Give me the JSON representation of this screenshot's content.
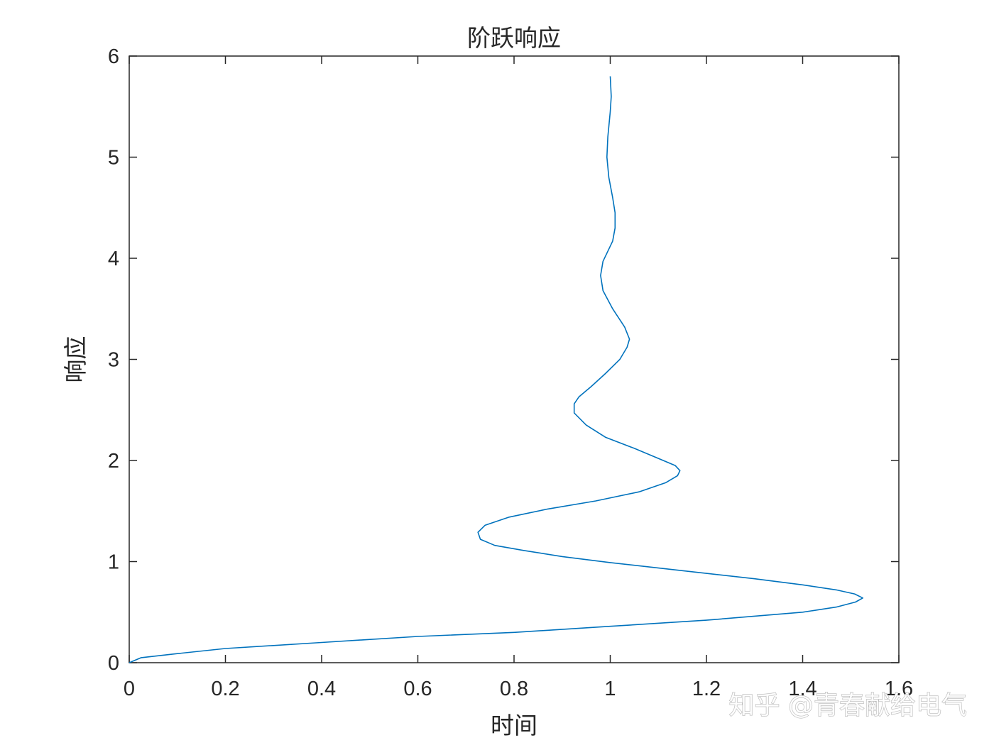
{
  "chart_data": {
    "type": "line",
    "title": "阶跃响应",
    "xlabel": "时间",
    "ylabel": "响应",
    "xlim": [
      0,
      1.6
    ],
    "ylim": [
      0,
      6
    ],
    "xticks": [
      0,
      0.2,
      0.4,
      0.6,
      0.8,
      1,
      1.2,
      1.4,
      1.6
    ],
    "xtick_labels": [
      "0",
      "0.2",
      "0.4",
      "0.6",
      "0.8",
      "1",
      "1.2",
      "1.4",
      "1.6"
    ],
    "yticks": [
      0,
      1,
      2,
      3,
      4,
      5,
      6
    ],
    "ytick_labels": [
      "0",
      "1",
      "2",
      "3",
      "4",
      "5",
      "6"
    ],
    "grid": false,
    "line_color": "#0072BD",
    "series": [
      {
        "points": [
          [
            0,
            0
          ],
          [
            0.025,
            0.05
          ],
          [
            0.1,
            0.09
          ],
          [
            0.2,
            0.14
          ],
          [
            0.4,
            0.2
          ],
          [
            0.6,
            0.26
          ],
          [
            0.8,
            0.3
          ],
          [
            1.0,
            0.36
          ],
          [
            1.2,
            0.42
          ],
          [
            1.4,
            0.5
          ],
          [
            1.47,
            0.55
          ],
          [
            1.51,
            0.6
          ],
          [
            1.525,
            0.64
          ],
          [
            1.508,
            0.68
          ],
          [
            1.47,
            0.72
          ],
          [
            1.4,
            0.77
          ],
          [
            1.3,
            0.83
          ],
          [
            1.15,
            0.91
          ],
          [
            1.0,
            0.99
          ],
          [
            0.9,
            1.05
          ],
          [
            0.82,
            1.11
          ],
          [
            0.76,
            1.16
          ],
          [
            0.73,
            1.22
          ],
          [
            0.725,
            1.29
          ],
          [
            0.74,
            1.36
          ],
          [
            0.79,
            1.44
          ],
          [
            0.87,
            1.52
          ],
          [
            0.97,
            1.6
          ],
          [
            1.06,
            1.69
          ],
          [
            1.115,
            1.78
          ],
          [
            1.14,
            1.85
          ],
          [
            1.145,
            1.9
          ],
          [
            1.135,
            1.95
          ],
          [
            1.1,
            2.02
          ],
          [
            1.05,
            2.12
          ],
          [
            0.99,
            2.23
          ],
          [
            0.95,
            2.35
          ],
          [
            0.925,
            2.47
          ],
          [
            0.925,
            2.56
          ],
          [
            0.935,
            2.63
          ],
          [
            0.96,
            2.73
          ],
          [
            0.99,
            2.86
          ],
          [
            1.02,
            3.0
          ],
          [
            1.035,
            3.12
          ],
          [
            1.04,
            3.2
          ],
          [
            1.03,
            3.32
          ],
          [
            1.005,
            3.5
          ],
          [
            0.985,
            3.68
          ],
          [
            0.98,
            3.83
          ],
          [
            0.985,
            3.97
          ],
          [
            1.005,
            4.17
          ],
          [
            1.01,
            4.3
          ],
          [
            1.01,
            4.45
          ],
          [
            1.005,
            4.6
          ],
          [
            0.997,
            4.8
          ],
          [
            0.993,
            5.0
          ],
          [
            0.995,
            5.2
          ],
          [
            1.0,
            5.45
          ],
          [
            1.002,
            5.6
          ],
          [
            1.0,
            5.8
          ]
        ]
      }
    ]
  },
  "watermark": "知乎 @青春献给电气"
}
